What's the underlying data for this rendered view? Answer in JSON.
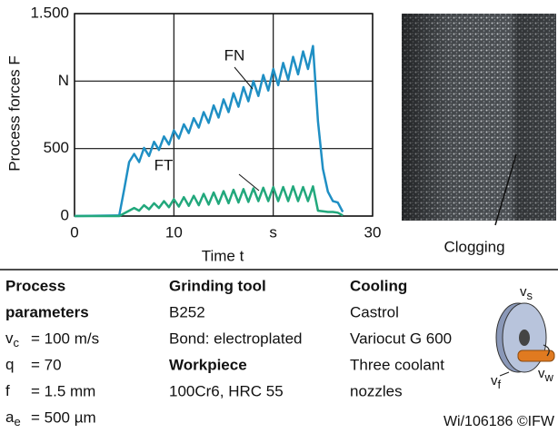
{
  "chart_data": {
    "type": "line",
    "x_label": "Time t",
    "y_label": "Process forces F",
    "x": [
      0,
      4.5,
      5,
      5.5,
      6,
      6.5,
      7,
      7.5,
      8,
      8.5,
      9,
      9.5,
      10,
      10.5,
      11,
      11.5,
      12,
      12.5,
      13,
      13.5,
      14,
      14.5,
      15,
      15.5,
      16,
      16.5,
      17,
      17.5,
      18,
      18.5,
      19,
      19.5,
      20,
      20.5,
      21,
      21.5,
      22,
      22.5,
      23,
      23.5,
      24,
      24.5,
      25,
      25.5,
      26,
      26.5,
      27
    ],
    "series": [
      {
        "name": "FN",
        "color": "#1f8fc4",
        "values": [
          0,
          5,
          200,
          400,
          460,
          400,
          505,
          445,
          550,
          490,
          590,
          530,
          635,
          575,
          680,
          615,
          725,
          655,
          770,
          690,
          820,
          730,
          865,
          770,
          910,
          810,
          955,
          850,
          1000,
          890,
          1045,
          930,
          1090,
          970,
          1135,
          1010,
          1180,
          1050,
          1220,
          1090,
          1260,
          700,
          350,
          180,
          110,
          100,
          30
        ]
      },
      {
        "name": "FT",
        "color": "#22a87c",
        "values": [
          0,
          0,
          20,
          40,
          60,
          40,
          80,
          50,
          95,
          60,
          110,
          65,
          125,
          70,
          140,
          75,
          150,
          80,
          165,
          85,
          175,
          90,
          185,
          95,
          195,
          100,
          200,
          105,
          205,
          110,
          210,
          110,
          215,
          110,
          215,
          110,
          220,
          110,
          215,
          110,
          220,
          40,
          35,
          30,
          30,
          25,
          5
        ]
      }
    ],
    "xlim": [
      0,
      30
    ],
    "ylim": [
      0,
      1500
    ],
    "xticks": [
      0,
      10,
      {
        "value": 20,
        "label": "s"
      },
      30
    ],
    "yticks": [
      0,
      500,
      {
        "value": 1000,
        "label": "N"
      },
      {
        "value": 1500,
        "label": "1.500"
      }
    ],
    "grid": true
  },
  "photo": {
    "label": "Clogging"
  },
  "table": {
    "process": {
      "heading": [
        "Process",
        "parameters"
      ],
      "params": [
        {
          "symbol": "v",
          "sub": "c",
          "text": "= 100 m/s"
        },
        {
          "symbol": "q",
          "text": "= 70"
        },
        {
          "symbol": "f",
          "text": "= 1.5 mm"
        },
        {
          "symbol": "a",
          "sub": "e",
          "text": "= 500 µm"
        }
      ]
    },
    "grinding_tool": {
      "heading": "Grinding tool",
      "lines": [
        "B252",
        "Bond: electroplated"
      ]
    },
    "workpiece": {
      "heading": "Workpiece",
      "lines": [
        "100Cr6, HRC 55"
      ]
    },
    "cooling": {
      "heading": "Cooling",
      "lines": [
        "Castrol",
        "Variocut G 600",
        "Three coolant",
        "nozzles"
      ]
    },
    "diagram": [
      {
        "symbol": "v",
        "sub": "s"
      },
      {
        "symbol": "v",
        "sub": "f"
      },
      {
        "symbol": "v",
        "sub": "w"
      }
    ],
    "footer": "Wi/106186 ©IFW"
  }
}
